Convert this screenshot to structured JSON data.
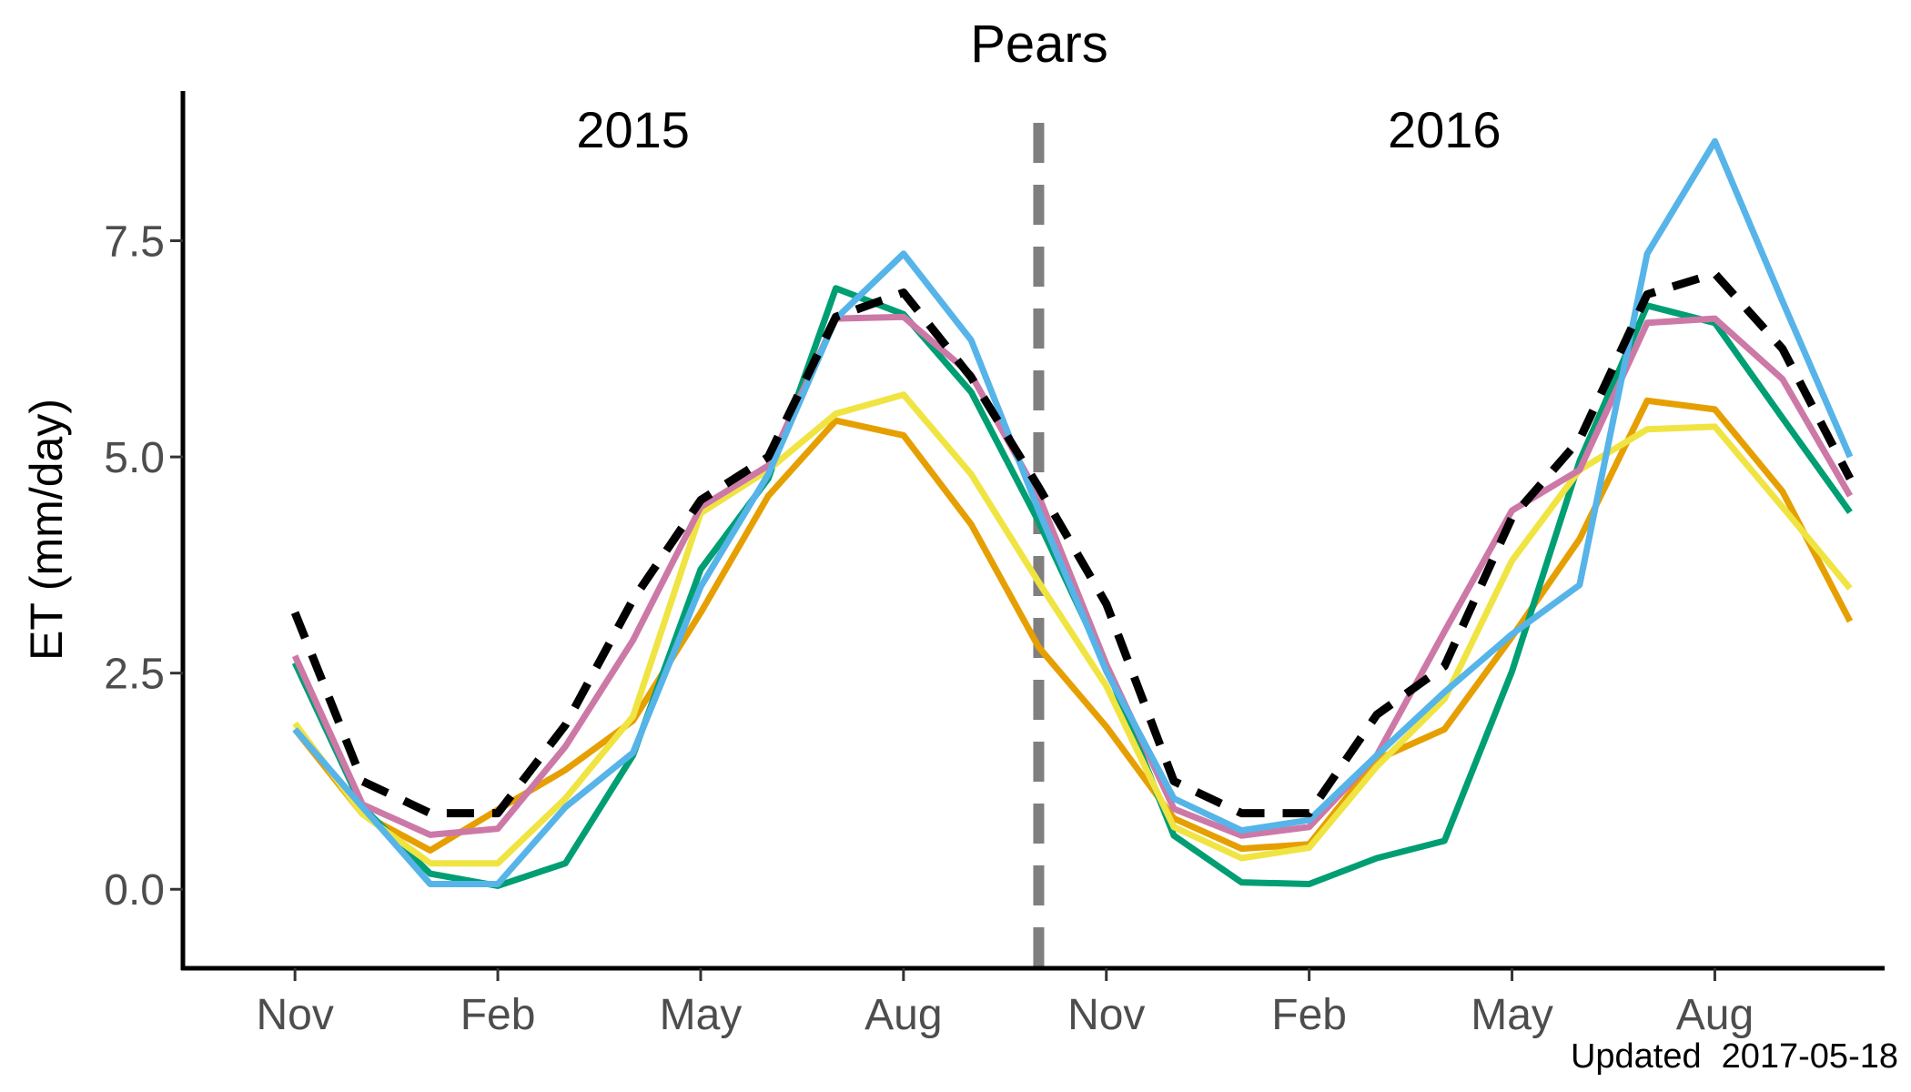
{
  "chart_data": {
    "type": "line",
    "title": "Pears",
    "xlabel": "",
    "ylabel": "ET (mm/day)",
    "ylim": [
      -0.45,
      9.6
    ],
    "y_ticks": [
      {
        "value": 0.0,
        "label": "0.0"
      },
      {
        "value": 2.5,
        "label": "2.5"
      },
      {
        "value": 5.0,
        "label": "5.0"
      },
      {
        "value": 7.5,
        "label": "7.5"
      }
    ],
    "x_ticks": [
      {
        "month": 0,
        "label": "Nov"
      },
      {
        "month": 3,
        "label": "Feb"
      },
      {
        "month": 6,
        "label": "May"
      },
      {
        "month": 9,
        "label": "Aug"
      },
      {
        "month": 12,
        "label": "Nov"
      },
      {
        "month": 15,
        "label": "Feb"
      },
      {
        "month": 18,
        "label": "May"
      },
      {
        "month": 21,
        "label": "Aug"
      }
    ],
    "water_year_labels": [
      {
        "label": "2015",
        "month": 5.0
      },
      {
        "label": "2016",
        "month": 17.0
      }
    ],
    "water_year_divider_month": 11,
    "series": [
      {
        "color": "#e69f00",
        "style": "solid",
        "values": [
          1.85,
          0.87,
          0.45,
          0.92,
          1.38,
          1.95,
          3.2,
          4.55,
          5.42,
          5.25,
          4.22,
          2.8,
          1.88,
          0.82,
          0.47,
          0.52,
          1.5,
          1.85,
          2.92,
          4.05,
          5.65,
          5.55,
          4.6,
          3.1
        ]
      },
      {
        "color": "#009e73",
        "style": "solid",
        "values": [
          2.62,
          0.95,
          0.18,
          0.04,
          0.3,
          1.55,
          3.7,
          4.75,
          6.95,
          6.65,
          5.75,
          4.25,
          2.58,
          0.62,
          0.08,
          0.06,
          0.36,
          0.56,
          2.52,
          4.95,
          6.75,
          6.55,
          5.45,
          4.36
        ]
      },
      {
        "color": "#f0e442",
        "style": "solid",
        "values": [
          1.92,
          0.87,
          0.3,
          0.3,
          1.05,
          2.0,
          4.35,
          4.85,
          5.5,
          5.72,
          4.8,
          3.55,
          2.35,
          0.72,
          0.36,
          0.48,
          1.42,
          2.2,
          3.8,
          4.85,
          5.32,
          5.35,
          4.42,
          3.48
        ]
      },
      {
        "color": "#cc79a7",
        "style": "solid",
        "values": [
          2.7,
          0.98,
          0.63,
          0.7,
          1.65,
          2.88,
          4.42,
          4.9,
          6.6,
          6.62,
          5.95,
          4.55,
          2.6,
          0.93,
          0.62,
          0.72,
          1.55,
          2.98,
          4.38,
          4.85,
          6.55,
          6.6,
          5.9,
          4.55
        ]
      },
      {
        "color": "#56b4e9",
        "style": "solid",
        "values": [
          1.85,
          0.95,
          0.06,
          0.06,
          0.95,
          1.58,
          3.5,
          4.8,
          6.6,
          7.35,
          6.35,
          4.38,
          2.52,
          1.05,
          0.68,
          0.8,
          1.55,
          2.28,
          2.95,
          3.52,
          7.35,
          8.65,
          6.8,
          5.0
        ]
      },
      {
        "color": "#000000",
        "style": "dashed",
        "values": [
          3.2,
          1.25,
          0.88,
          0.88,
          1.9,
          3.35,
          4.5,
          5.0,
          6.62,
          6.9,
          5.92,
          4.65,
          3.3,
          1.25,
          0.88,
          0.88,
          2.02,
          2.58,
          4.3,
          5.2,
          6.88,
          7.12,
          6.25,
          4.75
        ]
      }
    ]
  },
  "footer": {
    "updated_label": "Updated",
    "updated_date": "2017-05-18"
  }
}
